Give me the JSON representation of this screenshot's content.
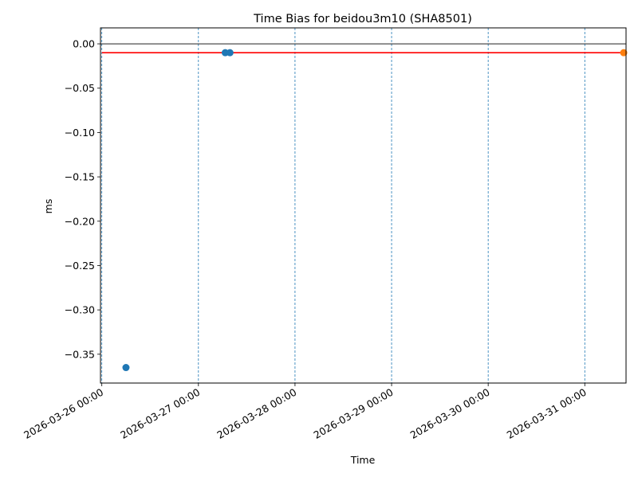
{
  "chart_data": {
    "type": "scatter",
    "title": "Time Bias for beidou3m10 (SHA8501)",
    "xlabel": "Time",
    "ylabel": "ms",
    "xlim": [
      "2026-03-25T23:40:00",
      "2026-03-31T10:15:00"
    ],
    "ylim": [
      -0.3825,
      0.018
    ],
    "x_ticks": [
      "2026-03-26T00:00:00",
      "2026-03-27T00:00:00",
      "2026-03-28T00:00:00",
      "2026-03-29T00:00:00",
      "2026-03-30T00:00:00",
      "2026-03-31T00:00:00"
    ],
    "x_tick_labels": [
      "2026-03-26 00:00",
      "2026-03-27 00:00",
      "2026-03-28 00:00",
      "2026-03-29 00:00",
      "2026-03-30 00:00",
      "2026-03-31 00:00"
    ],
    "y_ticks": [
      0.0,
      -0.05,
      -0.1,
      -0.15,
      -0.2,
      -0.25,
      -0.3,
      -0.35
    ],
    "y_tick_labels": [
      "0.00",
      "−0.05",
      "−0.10",
      "−0.15",
      "−0.20",
      "−0.25",
      "−0.30",
      "−0.35"
    ],
    "grid": "vertical dashed at x ticks",
    "series": [
      {
        "color": "#1f77b4",
        "points": [
          {
            "x": "2026-03-26T06:00:00",
            "y": -0.365
          },
          {
            "x": "2026-03-27T06:40:00",
            "y": -0.01
          },
          {
            "x": "2026-03-27T07:50:00",
            "y": -0.01
          }
        ]
      },
      {
        "color": "#ff7f0e",
        "points": [
          {
            "x": "2026-03-31T09:40:00",
            "y": -0.01
          }
        ]
      }
    ],
    "reference_lines": [
      {
        "orientation": "horizontal",
        "y": 0.0,
        "color": "#000000"
      },
      {
        "orientation": "horizontal",
        "y": -0.01,
        "color": "#ff0000",
        "x_start": "2026-03-26T00:00:00",
        "x_end": "2026-03-31T09:40:00"
      }
    ],
    "gridline_color": "#1f77b4"
  }
}
